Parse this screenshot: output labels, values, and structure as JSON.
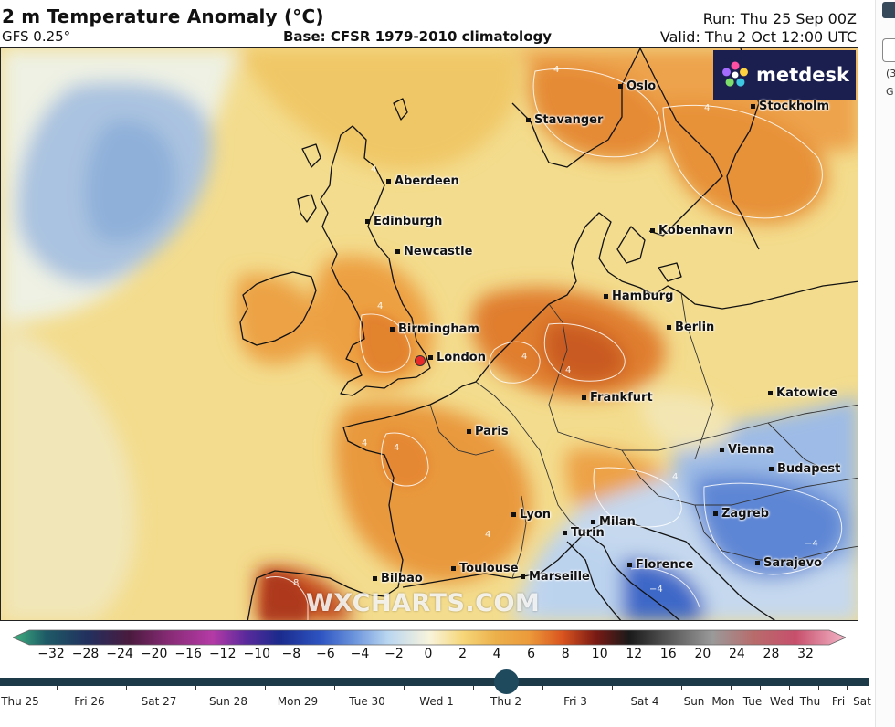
{
  "header": {
    "title": "2 m Temperature Anomaly (°C)",
    "model": "GFS 0.25°",
    "base": "Base: CFSR 1979-2010 climatology",
    "run": "Run: Thu 25 Sep 00Z",
    "valid": "Valid: Thu 2 Oct 12:00 UTC"
  },
  "logo": {
    "text": "metdesk"
  },
  "watermark": "WXCHARTS.COM",
  "cities": [
    {
      "name": "Oslo"
    },
    {
      "name": "Stavanger"
    },
    {
      "name": "Stockholm"
    },
    {
      "name": "Aberdeen"
    },
    {
      "name": "Edinburgh"
    },
    {
      "name": "Newcastle"
    },
    {
      "name": "Kobenhavn"
    },
    {
      "name": "Hamburg"
    },
    {
      "name": "Berlin"
    },
    {
      "name": "Birmingham"
    },
    {
      "name": "London"
    },
    {
      "name": "Frankfurt"
    },
    {
      "name": "Katowice"
    },
    {
      "name": "Paris"
    },
    {
      "name": "Vienna"
    },
    {
      "name": "Budapest"
    },
    {
      "name": "Lyon"
    },
    {
      "name": "Milan"
    },
    {
      "name": "Turin"
    },
    {
      "name": "Zagreb"
    },
    {
      "name": "Florence"
    },
    {
      "name": "Sarajevo"
    },
    {
      "name": "Toulouse"
    },
    {
      "name": "Marseille"
    },
    {
      "name": "Bilbao"
    }
  ],
  "colorbar": {
    "ticks": [
      "−32",
      "−28",
      "−24",
      "−20",
      "−16",
      "−12",
      "−10",
      "−8",
      "−6",
      "−4",
      "−2",
      "0",
      "2",
      "4",
      "6",
      "8",
      "10",
      "12",
      "16",
      "20",
      "24",
      "28",
      "32"
    ],
    "colors": {
      "cold_end": "#3fb27f",
      "deep_purple": "#5c1a4a",
      "magenta": "#b43aa6",
      "navy": "#1a2a8c",
      "blue": "#3f6fd1",
      "light_blue": "#b9d6f0",
      "neutral": "#f8f4dc",
      "yellow": "#f6d77a",
      "orange": "#ec9a3a",
      "red_orange": "#d9541f",
      "dark_red": "#7a1a14",
      "black": "#1a1a1a",
      "pink": "#f3b6c8"
    }
  },
  "timeline": {
    "selected": "Thu 2",
    "days": [
      "Thu 25",
      "Fri 26",
      "Sat 27",
      "Sun 28",
      "Mon 29",
      "Tue 30",
      "Wed 1",
      "Thu 2",
      "Fri 3",
      "Sat 4",
      "Sun",
      "Mon",
      "Tue",
      "Wed",
      "Thu",
      "Fri",
      "Sat"
    ]
  },
  "right_panel": {
    "text1": "(3",
    "text2": "G"
  }
}
